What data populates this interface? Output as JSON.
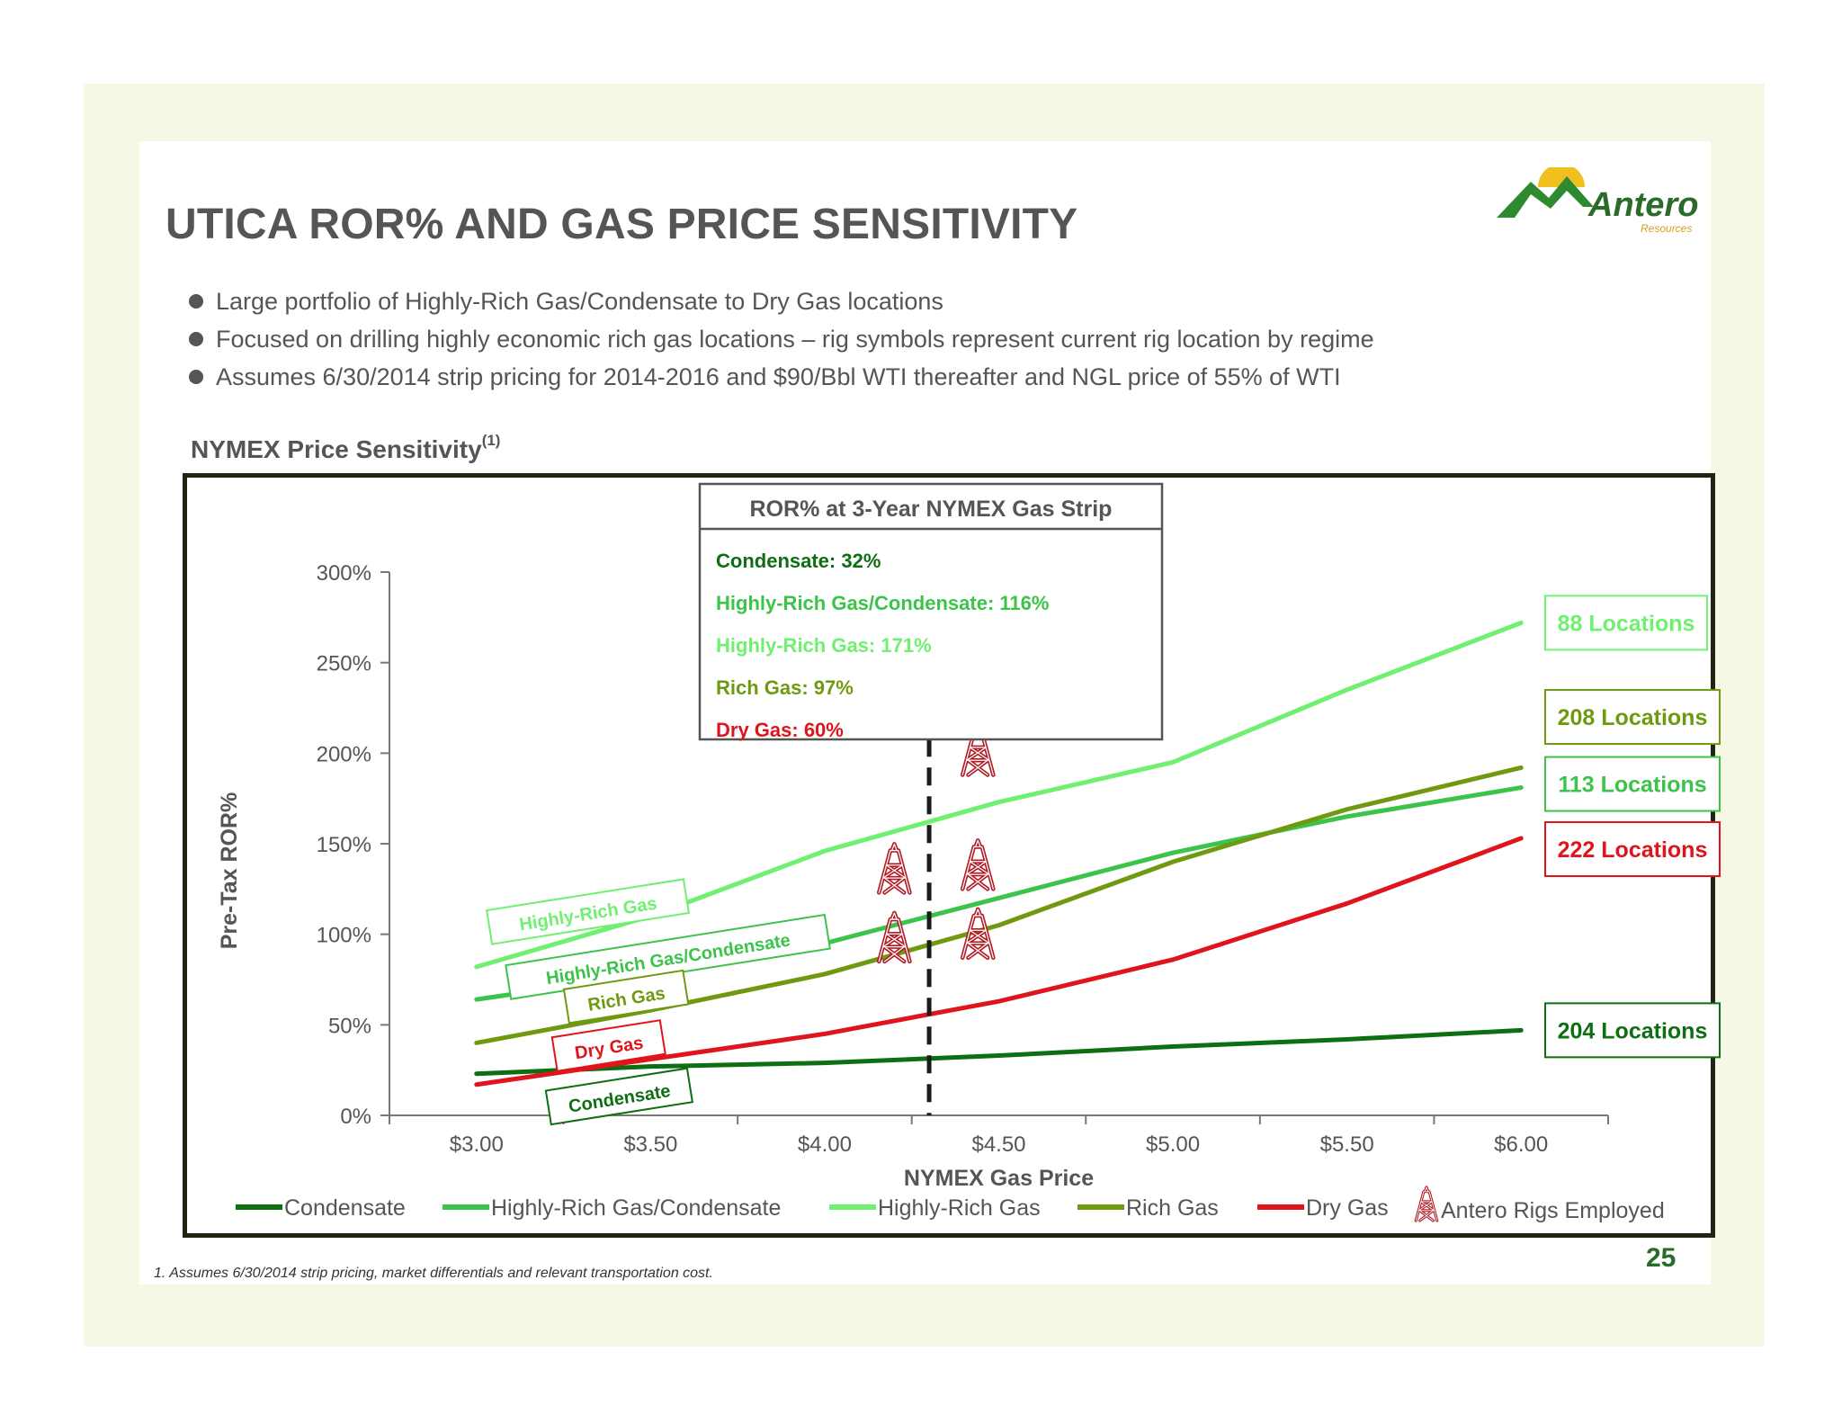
{
  "title": "UTICA ROR% AND GAS PRICE SENSITIVITY",
  "logo": {
    "name": "Antero",
    "tagline": "Resources"
  },
  "bullets": [
    "Large portfolio of Highly-Rich Gas/Condensate to Dry Gas locations",
    "Focused on drilling highly economic rich gas locations – rig symbols represent current rig location by regime",
    "Assumes 6/30/2014 strip pricing for 2014-2016 and $90/Bbl WTI thereafter and NGL price of 55% of WTI"
  ],
  "subheading": {
    "text": "NYMEX Price Sensitivity",
    "sup": "(1)"
  },
  "colors": {
    "condensate": "#0e6e12",
    "hrgc": "#3cc34a",
    "hrg": "#70f070",
    "rich": "#6f9a10",
    "dry": "#e0141c",
    "rig": "#b01c24"
  },
  "chart_data": {
    "type": "line",
    "xlabel": "NYMEX Gas Price",
    "ylabel": "Pre-Tax ROR%",
    "x": [
      3.0,
      3.5,
      4.0,
      4.5,
      5.0,
      5.5,
      6.0
    ],
    "x_tick_labels": [
      "$3.00",
      "$3.50",
      "$4.00",
      "$4.50",
      "$5.00",
      "$5.50",
      "$6.00"
    ],
    "y_tick_values": [
      0,
      50,
      100,
      150,
      200,
      250,
      300
    ],
    "y_tick_labels": [
      "0%",
      "50%",
      "100%",
      "150%",
      "200%",
      "250%",
      "300%"
    ],
    "xlim": [
      2.75,
      6.25
    ],
    "ylim": [
      0,
      300
    ],
    "grid": false,
    "series": [
      {
        "key": "condensate",
        "name": "Condensate",
        "values": [
          23,
          27,
          29,
          33,
          38,
          42,
          47
        ]
      },
      {
        "key": "hrgc",
        "name": "Highly-Rich Gas/Condensate",
        "values": [
          64,
          78,
          95,
          120,
          145,
          165,
          181
        ]
      },
      {
        "key": "hrg",
        "name": "Highly-Rich Gas",
        "values": [
          82,
          110,
          146,
          173,
          195,
          235,
          272
        ]
      },
      {
        "key": "rich",
        "name": "Rich Gas",
        "values": [
          40,
          58,
          78,
          105,
          140,
          169,
          192
        ]
      },
      {
        "key": "dry",
        "name": "Dry Gas",
        "values": [
          17,
          31,
          45,
          63,
          86,
          117,
          153
        ]
      }
    ],
    "strip_line": {
      "x": 4.3
    },
    "inline_labels": [
      {
        "series": "hrg",
        "text": "Highly-Rich Gas",
        "x": 3.32,
        "y": 112,
        "rotate": -9
      },
      {
        "series": "hrgc",
        "text": "Highly-Rich Gas/Condensate",
        "x": 3.55,
        "y": 87,
        "rotate": -9
      },
      {
        "series": "rich",
        "text": "Rich Gas",
        "x": 3.43,
        "y": 65,
        "rotate": -9
      },
      {
        "series": "dry",
        "text": "Dry Gas",
        "x": 3.38,
        "y": 38,
        "rotate": -9
      },
      {
        "series": "condensate",
        "text": "Condensate",
        "x": 3.41,
        "y": 10,
        "rotate": -9
      }
    ],
    "location_labels": [
      {
        "series": "hrg",
        "text": "88 Locations",
        "y": 272
      },
      {
        "series": "rich",
        "text": "208 Locations",
        "y": 220
      },
      {
        "series": "hrgc",
        "text": "113 Locations",
        "y": 183
      },
      {
        "series": "dry",
        "text": "222 Locations",
        "y": 147
      },
      {
        "series": "condensate",
        "text": "204 Locations",
        "y": 47
      }
    ],
    "rigs": [
      {
        "x": 4.44,
        "y": 188
      },
      {
        "x": 4.2,
        "y": 123
      },
      {
        "x": 4.44,
        "y": 125
      },
      {
        "x": 4.2,
        "y": 85
      },
      {
        "x": 4.44,
        "y": 87
      }
    ],
    "info_box": {
      "title": "ROR% at 3-Year NYMEX Gas Strip",
      "rows": [
        {
          "series": "condensate",
          "text": "Condensate: 32%"
        },
        {
          "series": "hrgc",
          "text": "Highly-Rich Gas/Condensate: 116%"
        },
        {
          "series": "hrg",
          "text": "Highly-Rich Gas: 171%"
        },
        {
          "series": "rich",
          "text": "Rich Gas: 97%"
        },
        {
          "series": "dry",
          "text": "Dry Gas: 60%"
        }
      ]
    },
    "legend": {
      "placement": "bottom",
      "items": [
        {
          "series": "condensate",
          "label": "Condensate"
        },
        {
          "series": "hrgc",
          "label": "Highly-Rich Gas/Condensate"
        },
        {
          "series": "hrg",
          "label": "Highly-Rich Gas"
        },
        {
          "series": "rich",
          "label": "Rich Gas"
        },
        {
          "series": "dry",
          "label": "Dry Gas"
        }
      ],
      "rig_label": "Antero Rigs Employed"
    }
  },
  "footnote": "1.  Assumes 6/30/2014 strip pricing, market differentials and relevant transportation cost.",
  "page_number": "25"
}
